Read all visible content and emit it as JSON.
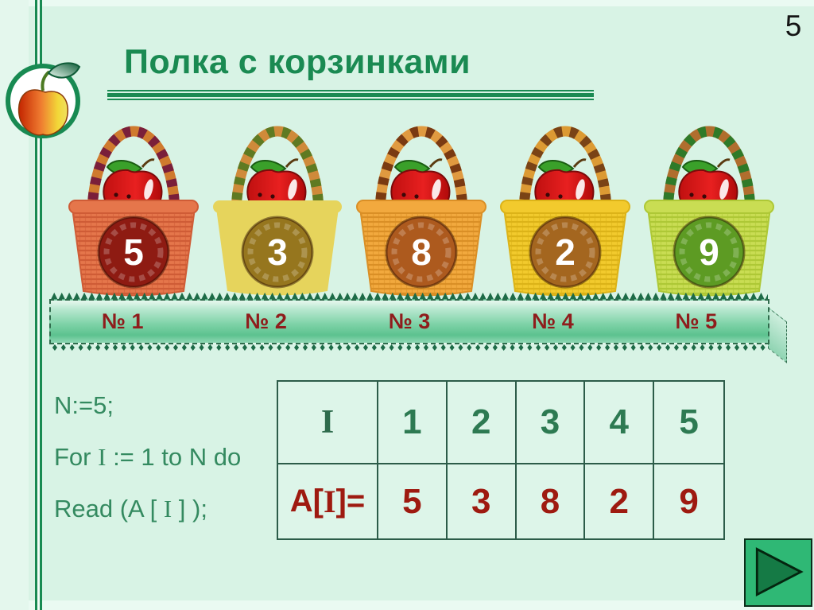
{
  "page": {
    "number": "5"
  },
  "header": {
    "title": "Полка с корзинками"
  },
  "colors": {
    "background": "#d8f3e5",
    "accent_green": "#1a8a52",
    "code_green": "#348a60",
    "dark_red": "#9e1a10",
    "shelf_label_red": "#8f1c1c",
    "table_border_green": "#2c5c49",
    "nav_button_green": "#2fb875",
    "nav_triangle_green": "#157a45"
  },
  "baskets": [
    {
      "number": "5",
      "shelf_label": "№ 1",
      "body": "#e5764b",
      "body_dark": "#cf5c36",
      "circle": "#8e1b12",
      "handle_a": "#7a1f3a",
      "handle_b": "#cf7a2e"
    },
    {
      "number": "3",
      "shelf_label": "№ 2",
      "body": "#e6d45c",
      "body_dark": "#cdbа42",
      "circle": "#96761e",
      "handle_a": "#5f7a22",
      "handle_b": "#cf8a3a"
    },
    {
      "number": "8",
      "shelf_label": "№ 3",
      "body": "#f2a93e",
      "body_dark": "#da8f26",
      "circle": "#ad5a1e",
      "handle_a": "#7a3a12",
      "handle_b": "#e09a40"
    },
    {
      "number": "2",
      "shelf_label": "№ 4",
      "body": "#f2ca2d",
      "body_dark": "#dcb318",
      "circle": "#a4661f",
      "handle_a": "#7a4316",
      "handle_b": "#dc9a33"
    },
    {
      "number": "9",
      "shelf_label": "№ 5",
      "body": "#c9dd53",
      "body_dark": "#aec836",
      "circle": "#5d9b23",
      "handle_a": "#2f7a28",
      "handle_b": "#b06e2e"
    }
  ],
  "shelf": {
    "labels": [
      "№ 1",
      "№ 2",
      "№ 3",
      "№ 4",
      "№ 5"
    ],
    "ornament_top": "▲",
    "ornament_bottom": "♦",
    "ornament_repeat": 130
  },
  "code": {
    "lines": [
      [
        {
          "t": "N:=5;",
          "f": "sans"
        }
      ],
      [
        {
          "t": "For ",
          "f": "sans"
        },
        {
          "t": "I",
          "f": "serif"
        },
        {
          "t": " := 1 to N do",
          "f": "sans"
        }
      ],
      [
        {
          "t": "Read (A [ ",
          "f": "sans"
        },
        {
          "t": "I",
          "f": "serif"
        },
        {
          "t": " ] );",
          "f": "sans"
        }
      ]
    ]
  },
  "table": {
    "header_label": [
      {
        "t": "I",
        "f": "serif"
      }
    ],
    "header_cells": [
      "1",
      "2",
      "3",
      "4",
      "5"
    ],
    "row_label": [
      {
        "t": "A[",
        "f": "sans"
      },
      {
        "t": "I",
        "f": "serif"
      },
      {
        "t": "]=",
        "f": "sans"
      }
    ],
    "row_cells": [
      "5",
      "3",
      "8",
      "2",
      "9"
    ]
  },
  "nav": {
    "icon": "play-right-icon"
  }
}
